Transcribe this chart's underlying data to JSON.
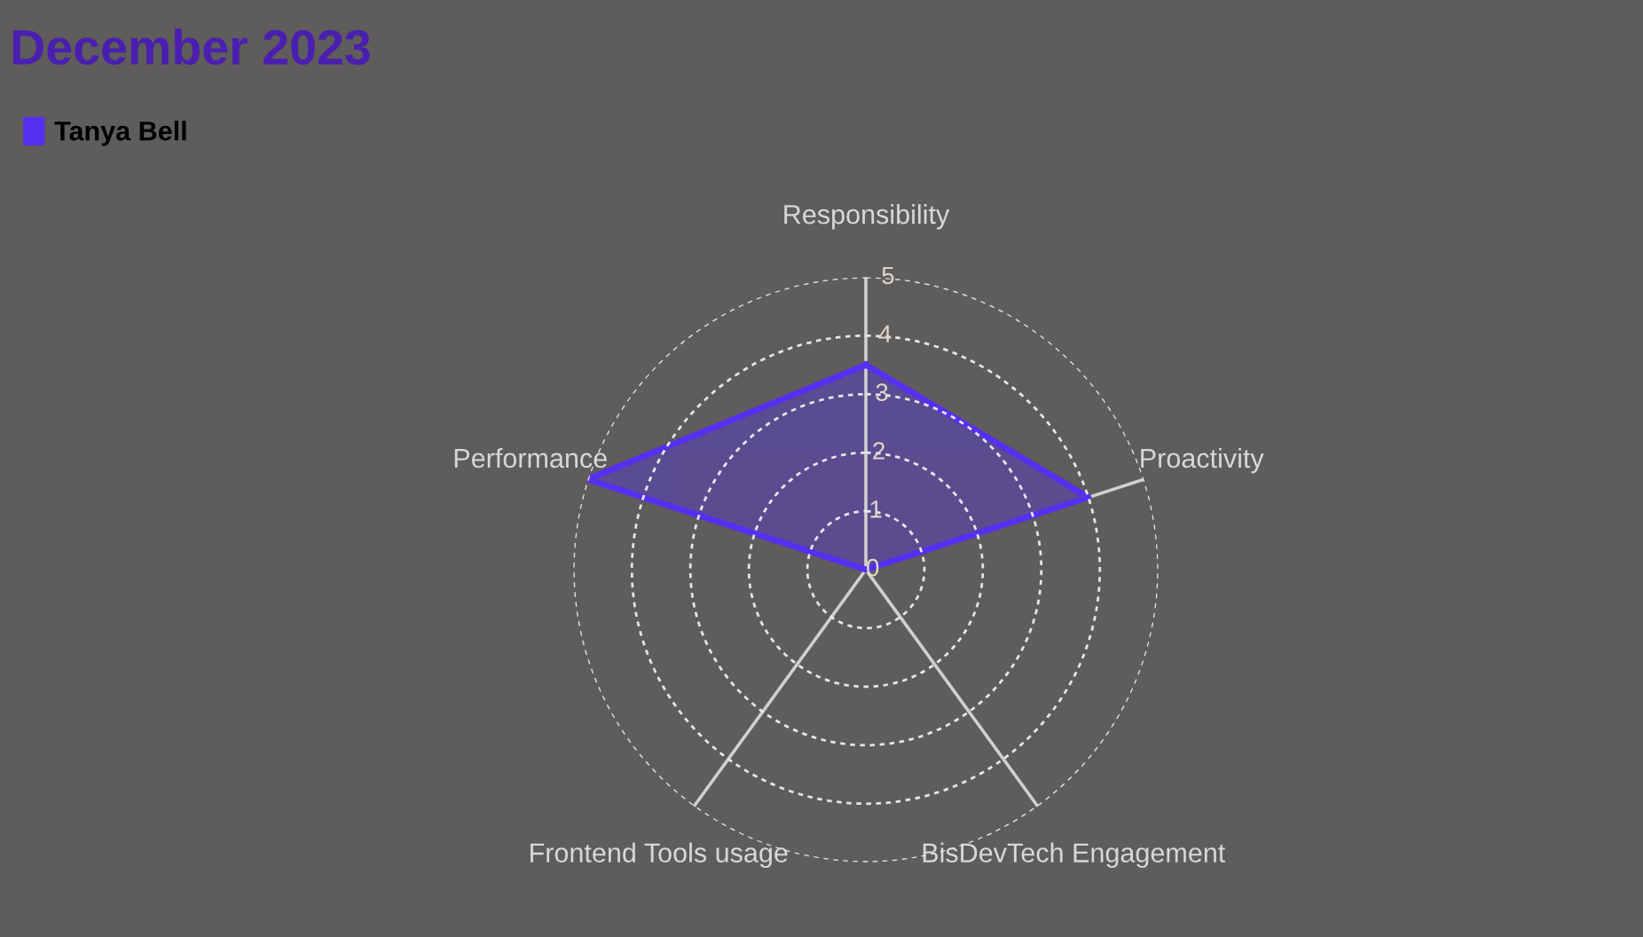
{
  "chart_data": {
    "type": "radar",
    "title": "December 2023",
    "categories": [
      "Responsibility",
      "Proactivity",
      "BisDevTech Engagement",
      "Frontend Tools usage",
      "Performance"
    ],
    "series": [
      {
        "name": "Tanya Bell",
        "color": "#5530f0",
        "values": [
          3.5,
          4,
          0,
          0,
          5
        ]
      }
    ],
    "ylim": [
      0,
      5
    ],
    "yticks": [
      0,
      1,
      2,
      3,
      4,
      5
    ],
    "grid": true,
    "legend": "top left",
    "marker": "none",
    "line_style": "solid"
  }
}
